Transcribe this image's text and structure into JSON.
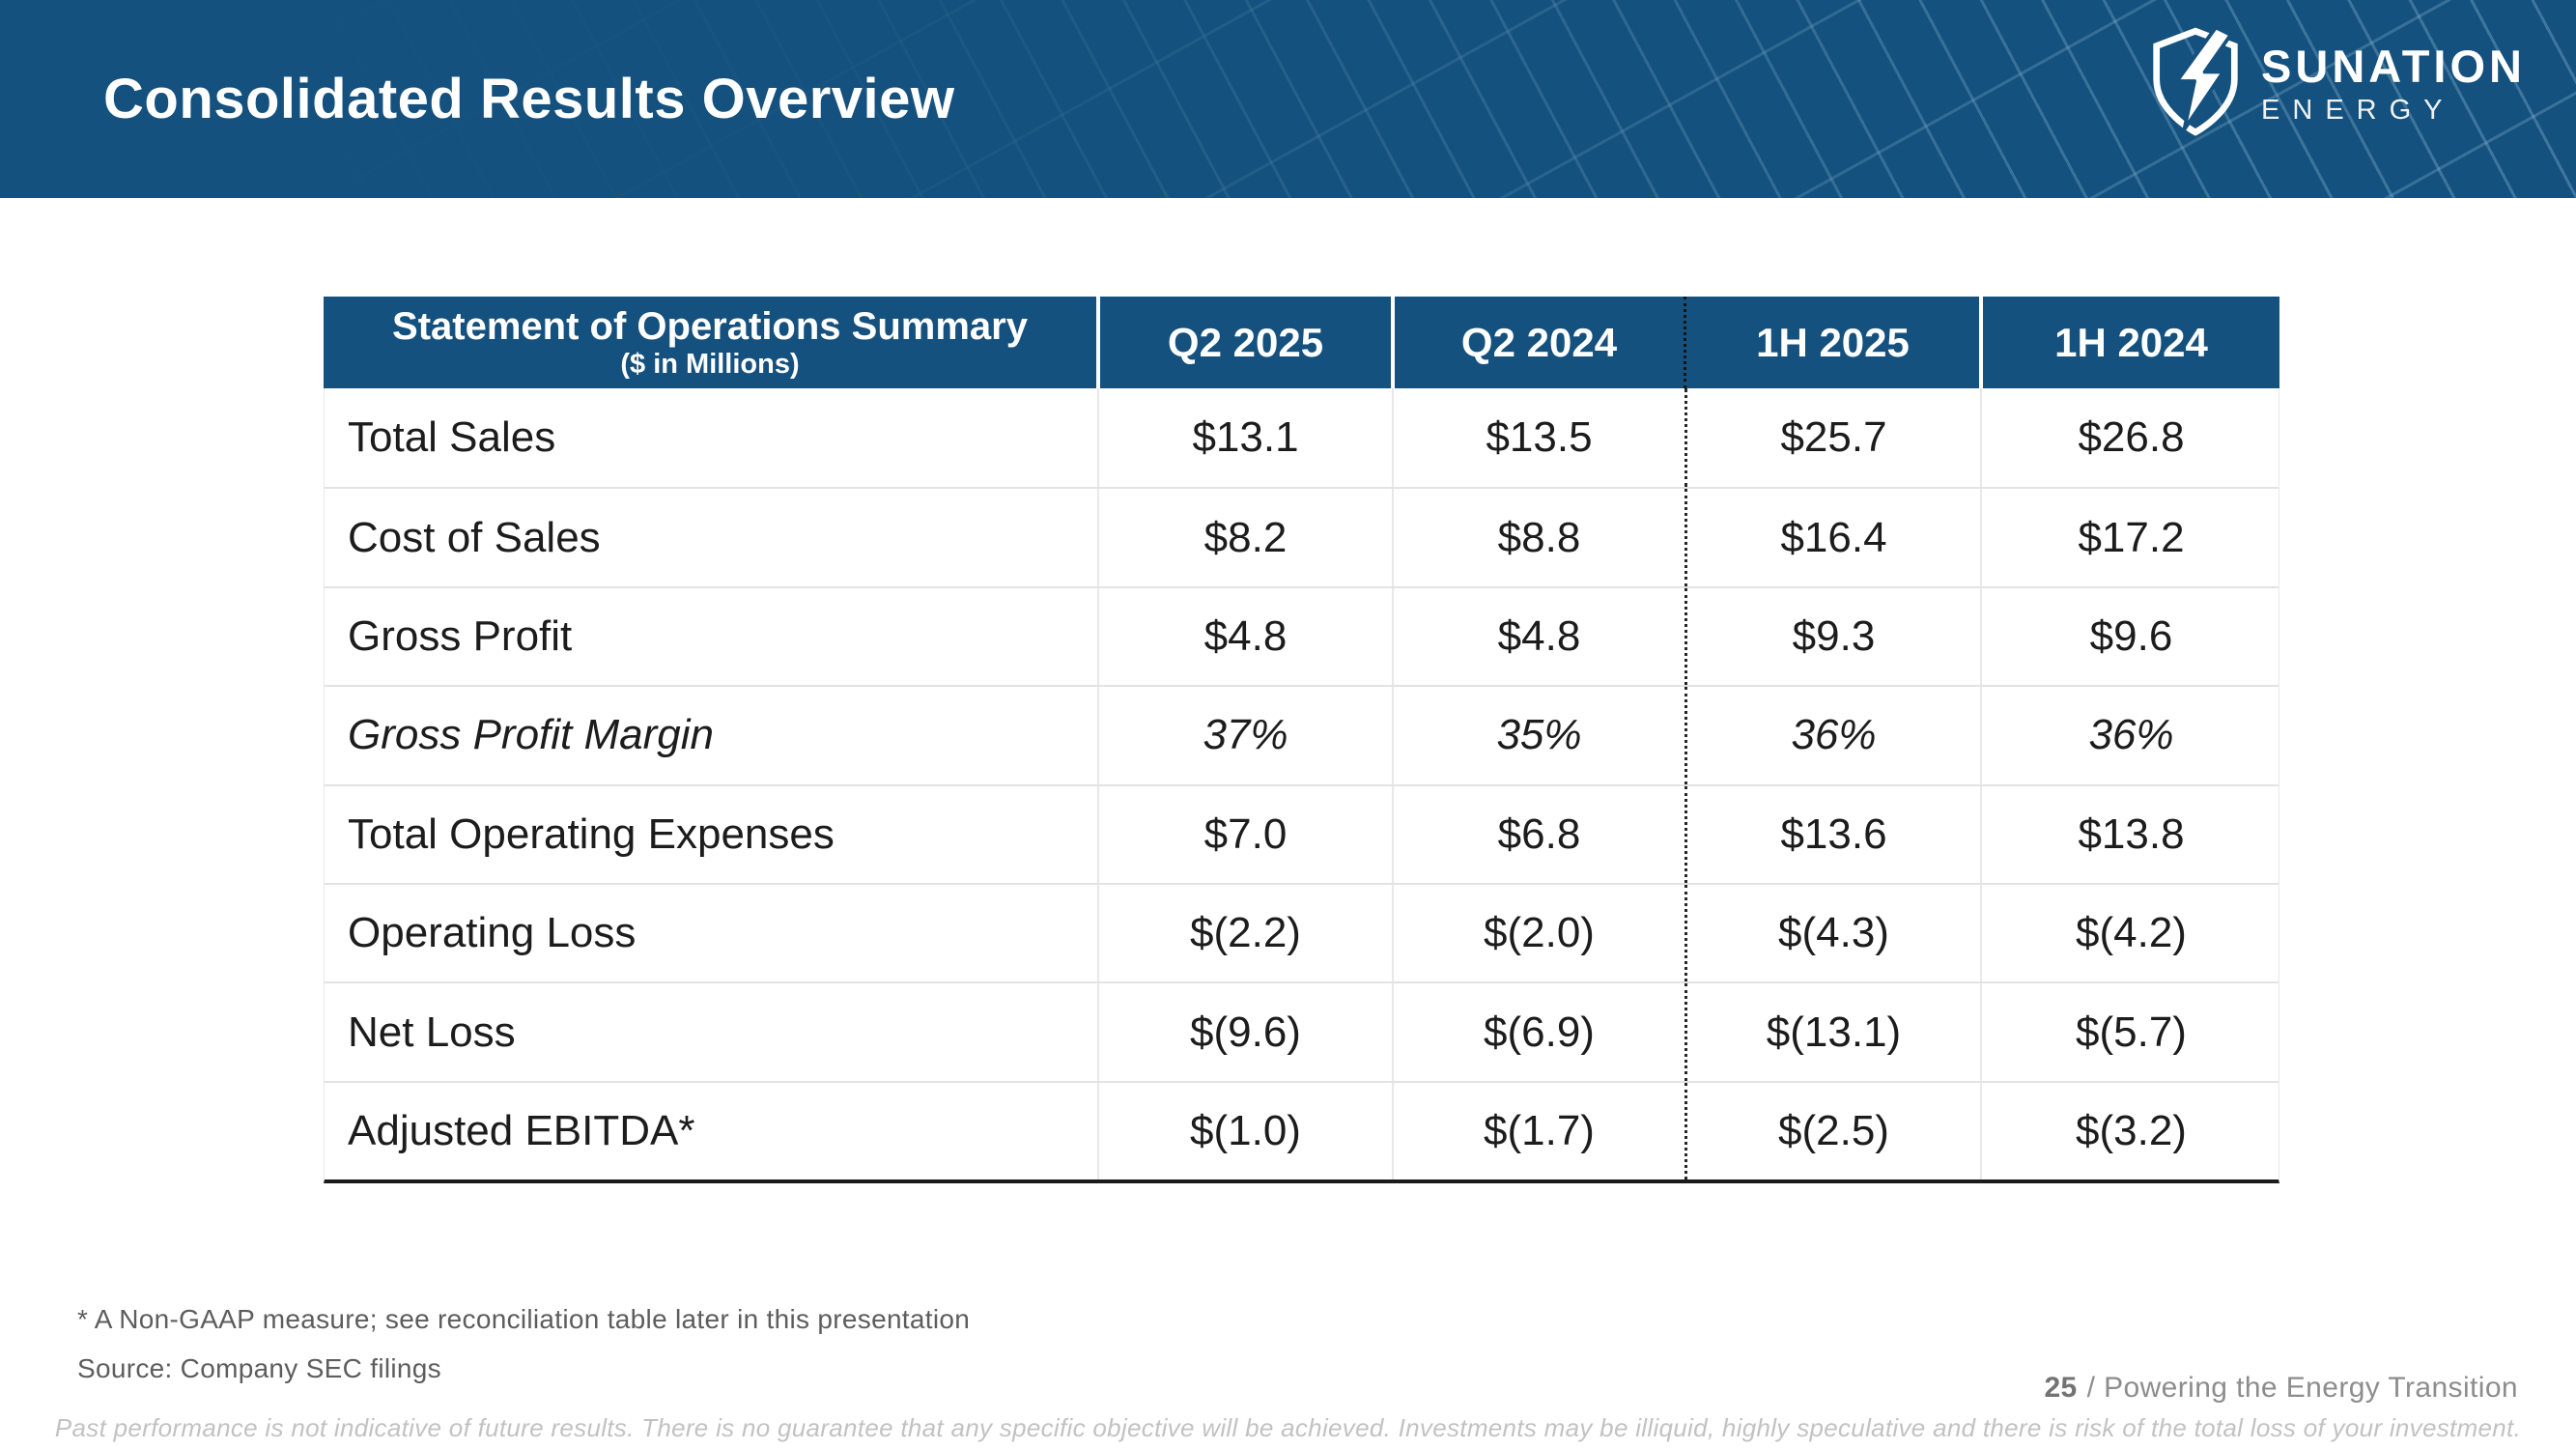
{
  "header": {
    "title": "Consolidated Results Overview",
    "logo": {
      "name": "SUNATION",
      "subname": "ENERGY"
    },
    "colors": {
      "banner_blue": "#15517E"
    }
  },
  "table": {
    "title": "Statement of Operations Summary",
    "subtitle": "($ in Millions)",
    "columns": [
      "Q2 2025",
      "Q2 2024",
      "1H 2025",
      "1H 2024"
    ],
    "rows": [
      {
        "label": "Total Sales",
        "italic": false,
        "values": [
          "$13.1",
          "$13.5",
          "$25.7",
          "$26.8"
        ]
      },
      {
        "label": "Cost of Sales",
        "italic": false,
        "values": [
          "$8.2",
          "$8.8",
          "$16.4",
          "$17.2"
        ]
      },
      {
        "label": "Gross Profit",
        "italic": false,
        "values": [
          "$4.8",
          "$4.8",
          "$9.3",
          "$9.6"
        ]
      },
      {
        "label": "Gross Profit Margin",
        "italic": true,
        "values": [
          "37%",
          "35%",
          "36%",
          "36%"
        ]
      },
      {
        "label": "Total Operating Expenses",
        "italic": false,
        "values": [
          "$7.0",
          "$6.8",
          "$13.6",
          "$13.8"
        ]
      },
      {
        "label": "Operating Loss",
        "italic": false,
        "values": [
          "$(2.2)",
          "$(2.0)",
          "$(4.3)",
          "$(4.2)"
        ]
      },
      {
        "label": "Net Loss",
        "italic": false,
        "values": [
          "$(9.6)",
          "$(6.9)",
          "$(13.1)",
          "$(5.7)"
        ]
      },
      {
        "label": "Adjusted EBITDA*",
        "italic": false,
        "values": [
          "$(1.0)",
          "$(1.7)",
          "$(2.5)",
          "$(3.2)"
        ]
      }
    ]
  },
  "footnotes": {
    "non_gaap": "* A Non-GAAP measure; see reconciliation table later in this presentation",
    "source": "Source:  Company SEC filings"
  },
  "footer": {
    "page_number": "25",
    "tagline": "/ Powering the Energy Transition",
    "disclaimer": "Past performance is not indicative of future results. There is no guarantee that any specific objective will be achieved. Investments may be illiquid, highly speculative and there is risk of the total loss of your investment."
  }
}
